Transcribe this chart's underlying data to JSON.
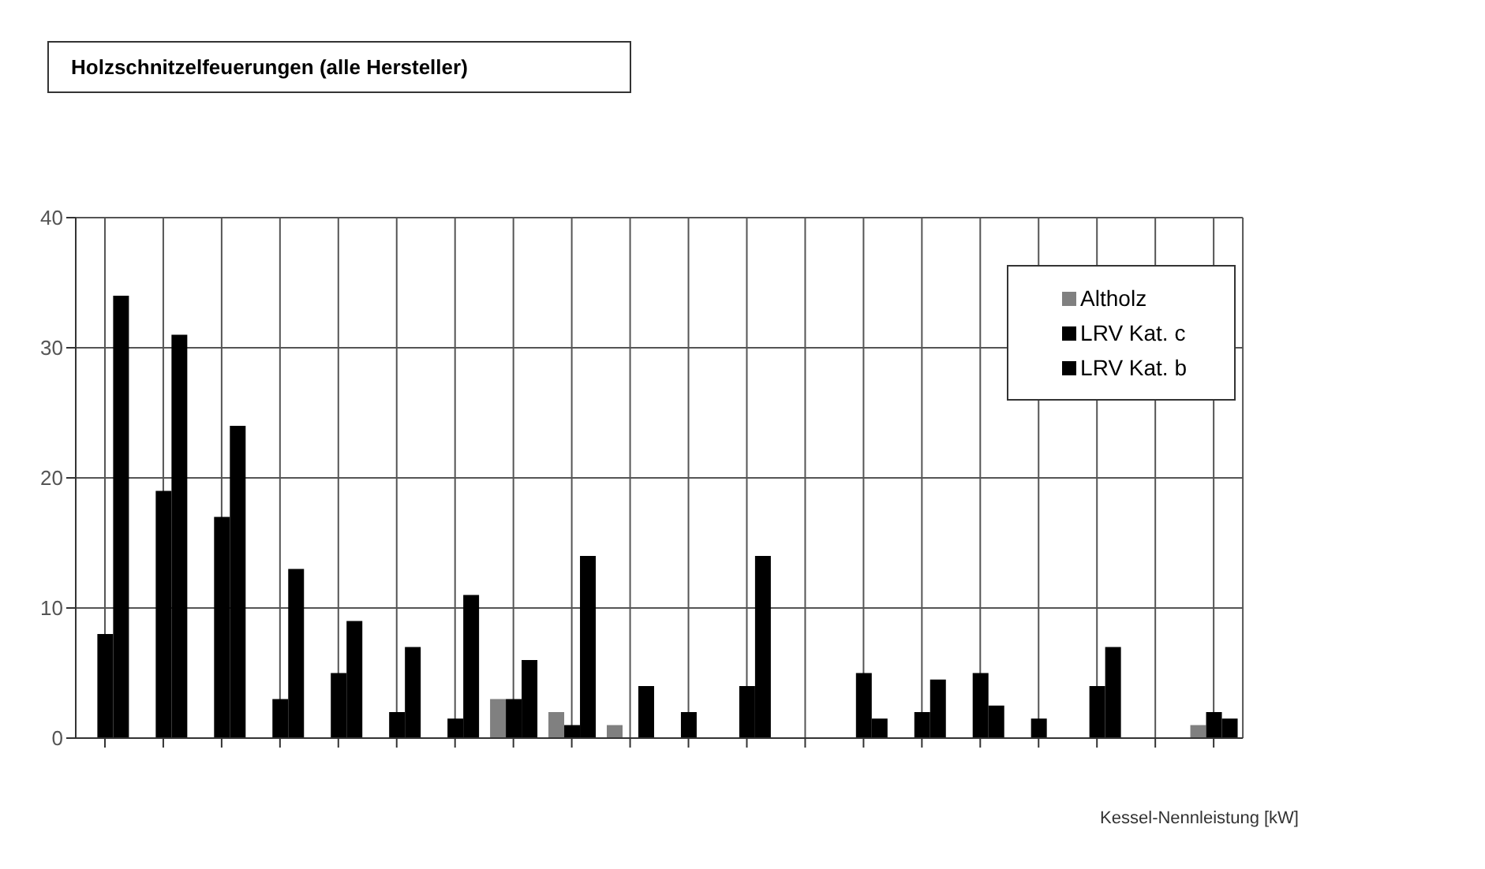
{
  "chart_data": {
    "type": "bar",
    "title": "Holzschnitzelfeuerungen (alle Hersteller)",
    "xlabel": "Kessel-Nennleistung [kW]",
    "categories": [
      null,
      null,
      null,
      null,
      null,
      null,
      null,
      null,
      null,
      null,
      null,
      null,
      null,
      null,
      null,
      null,
      null,
      null,
      null,
      null
    ],
    "series": [
      {
        "name": "Altholz",
        "color": "#808080",
        "values": [
          0,
          0,
          0,
          0,
          0,
          0,
          0,
          3,
          2,
          1,
          0,
          0,
          0,
          0,
          0,
          0,
          0,
          0,
          0,
          1
        ]
      },
      {
        "name": "LRV Kat. c",
        "color": "#000000",
        "values": [
          8,
          19,
          17,
          3,
          5,
          2,
          1.5,
          3,
          1,
          0,
          2,
          4,
          0,
          5,
          2,
          5,
          1.5,
          4,
          0,
          2
        ]
      },
      {
        "name": "LRV Kat. b",
        "color": "#000000",
        "values": [
          34,
          31,
          24,
          13,
          9,
          7,
          11,
          6,
          14,
          4,
          0,
          14,
          0,
          1.5,
          4.5,
          2.5,
          0,
          7,
          0,
          1.5
        ]
      }
    ],
    "ylim": [
      0,
      40
    ],
    "yticks": [
      0,
      10,
      20,
      30,
      40
    ],
    "grid": true,
    "legend": "top right"
  }
}
